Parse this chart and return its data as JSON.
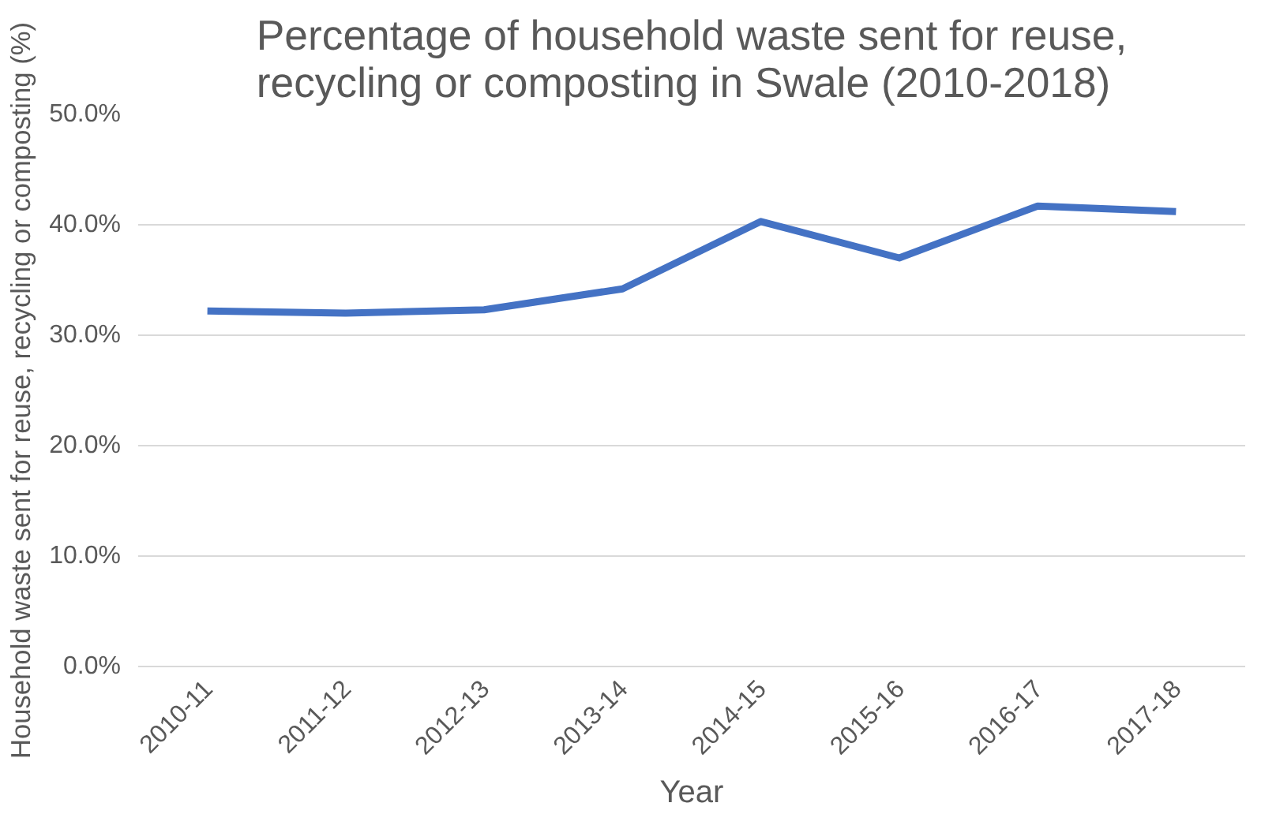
{
  "chart_data": {
    "type": "line",
    "title": "Percentage of household waste sent for reuse, recycling or composting in Swale (2010-2018)",
    "xlabel": "Year",
    "ylabel": "Household waste sent for reuse, recycling or composting (%)",
    "categories": [
      "2010-11",
      "2011-12",
      "2012-13",
      "2013-14",
      "2014-15",
      "2015-16",
      "2016-17",
      "2017-18"
    ],
    "series": [
      {
        "color": "#4472c4",
        "values": [
          32.2,
          32.0,
          32.3,
          34.2,
          40.3,
          37.0,
          41.7,
          41.2
        ]
      }
    ],
    "ylim": [
      0,
      50
    ],
    "yticks": [
      {
        "value": 0,
        "label": "0.0%"
      },
      {
        "value": 10,
        "label": "10.0%"
      },
      {
        "value": 20,
        "label": "20.0%"
      },
      {
        "value": 30,
        "label": "30.0%"
      },
      {
        "value": 40,
        "label": "40.0%"
      },
      {
        "value": 50,
        "label": "50.0%"
      }
    ],
    "grid": "y",
    "marker": "none",
    "line_style": "solid"
  }
}
